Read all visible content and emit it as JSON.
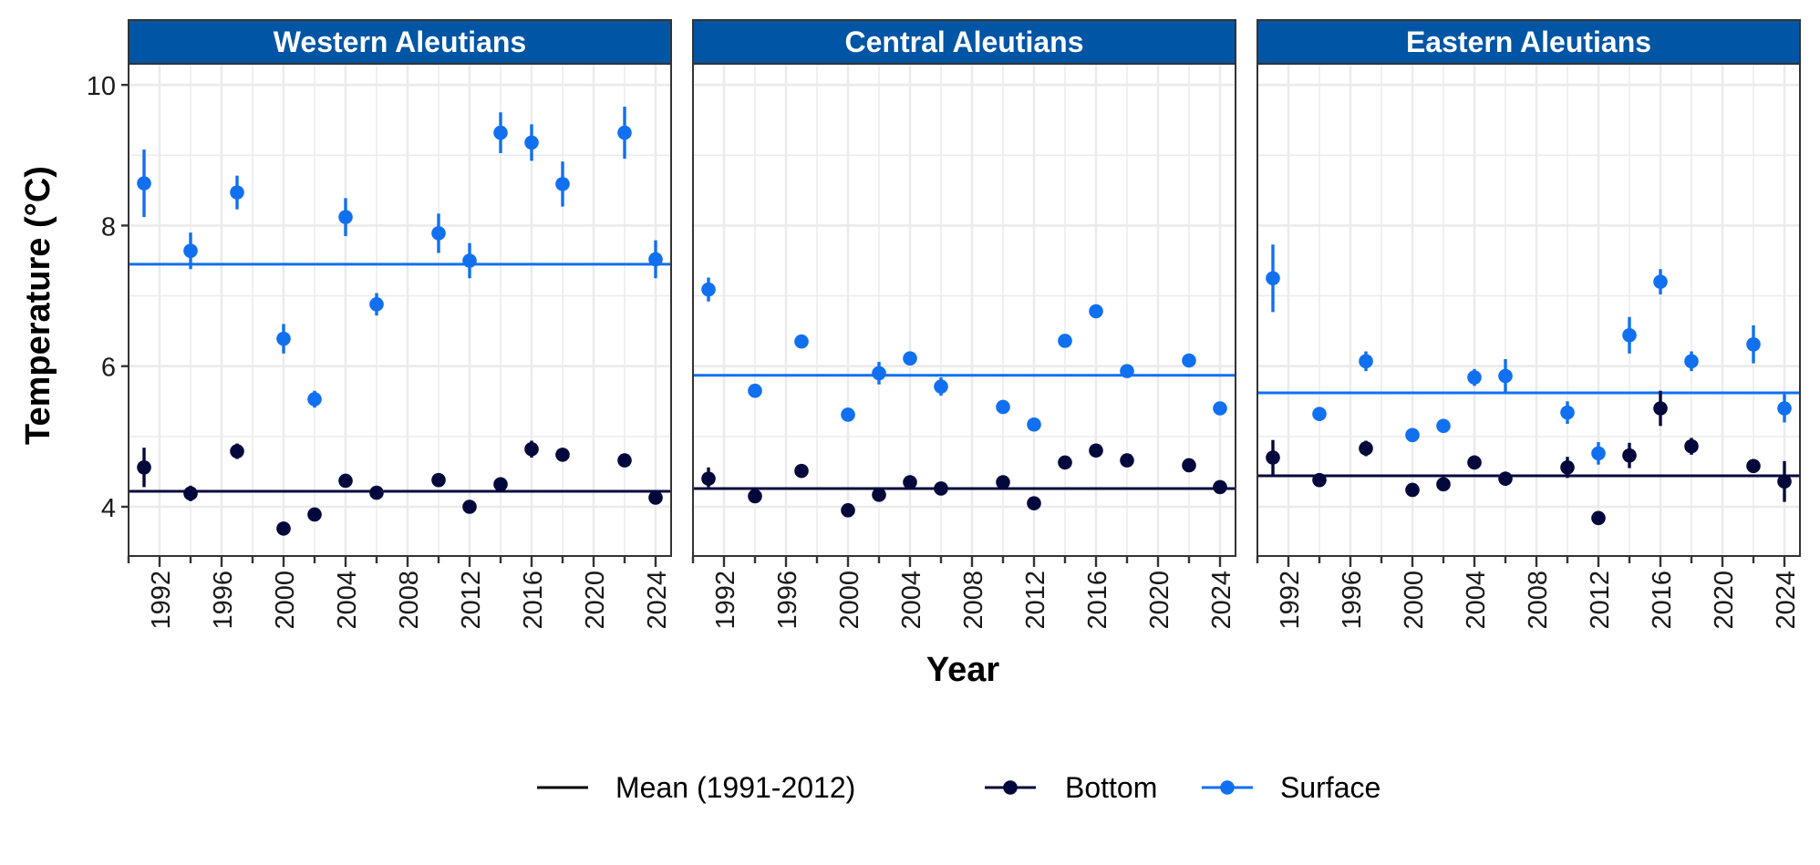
{
  "chart_data": {
    "type": "scatter",
    "facets": [
      "Western Aleutians",
      "Central Aleutians",
      "Eastern Aleutians"
    ],
    "xlabel": "Year",
    "ylabel": "Temperature (°C)",
    "ylim": [
      3.3,
      10.3
    ],
    "xlim": [
      1990,
      2025
    ],
    "y_ticks": [
      "4",
      "6",
      "8",
      "10"
    ],
    "x_tick_values": [
      1992,
      1996,
      2000,
      2004,
      2008,
      2012,
      2016,
      2020,
      2024
    ],
    "x_ticks": [
      "1992",
      "1996",
      "2000",
      "2004",
      "2008",
      "2012",
      "2016",
      "2020",
      "2024"
    ],
    "grid": true,
    "legend": {
      "position": "bottom",
      "items": [
        {
          "label": "Mean (1991-2012)",
          "kind": "line",
          "color": "#000000"
        },
        {
          "label": "Bottom",
          "kind": "point-line",
          "color": "#03083c"
        },
        {
          "label": "Surface",
          "kind": "point-line",
          "color": "#1170f0"
        }
      ]
    },
    "colors": {
      "bottom": "#03083c",
      "surface": "#1170f0",
      "strip": "#0055a5",
      "strip_text": "#ffffff"
    },
    "panels": [
      {
        "name": "Western Aleutians",
        "mean_bottom": 4.22,
        "mean_surface": 7.45,
        "bottom": [
          {
            "x": 1991,
            "y": 4.56,
            "lo": 4.28,
            "hi": 4.84
          },
          {
            "x": 1994,
            "y": 4.19,
            "lo": 4.08,
            "hi": 4.3
          },
          {
            "x": 1997,
            "y": 4.79,
            "lo": 4.68,
            "hi": 4.9
          },
          {
            "x": 2000,
            "y": 3.69,
            "lo": 3.64,
            "hi": 3.74
          },
          {
            "x": 2002,
            "y": 3.89,
            "lo": 3.84,
            "hi": 3.94
          },
          {
            "x": 2004,
            "y": 4.37,
            "lo": 4.32,
            "hi": 4.42
          },
          {
            "x": 2006,
            "y": 4.2,
            "lo": 4.15,
            "hi": 4.25
          },
          {
            "x": 2010,
            "y": 4.38,
            "lo": 4.33,
            "hi": 4.43
          },
          {
            "x": 2012,
            "y": 4.0,
            "lo": 3.95,
            "hi": 4.05
          },
          {
            "x": 2014,
            "y": 4.32,
            "lo": 4.22,
            "hi": 4.42
          },
          {
            "x": 2016,
            "y": 4.82,
            "lo": 4.7,
            "hi": 4.94
          },
          {
            "x": 2018,
            "y": 4.74,
            "lo": 4.69,
            "hi": 4.79
          },
          {
            "x": 2022,
            "y": 4.66,
            "lo": 4.61,
            "hi": 4.71
          },
          {
            "x": 2024,
            "y": 4.13,
            "lo": 4.08,
            "hi": 4.18
          }
        ],
        "surface": [
          {
            "x": 1991,
            "y": 8.6,
            "lo": 8.12,
            "hi": 9.08
          },
          {
            "x": 1994,
            "y": 7.64,
            "lo": 7.38,
            "hi": 7.9
          },
          {
            "x": 1997,
            "y": 8.47,
            "lo": 8.23,
            "hi": 8.71
          },
          {
            "x": 2000,
            "y": 6.39,
            "lo": 6.18,
            "hi": 6.6
          },
          {
            "x": 2002,
            "y": 5.53,
            "lo": 5.41,
            "hi": 5.65
          },
          {
            "x": 2004,
            "y": 8.12,
            "lo": 7.85,
            "hi": 8.39
          },
          {
            "x": 2006,
            "y": 6.88,
            "lo": 6.72,
            "hi": 7.04
          },
          {
            "x": 2010,
            "y": 7.89,
            "lo": 7.61,
            "hi": 8.17
          },
          {
            "x": 2012,
            "y": 7.5,
            "lo": 7.25,
            "hi": 7.75
          },
          {
            "x": 2014,
            "y": 9.32,
            "lo": 9.03,
            "hi": 9.61
          },
          {
            "x": 2016,
            "y": 9.18,
            "lo": 8.92,
            "hi": 9.44
          },
          {
            "x": 2018,
            "y": 8.59,
            "lo": 8.27,
            "hi": 8.91
          },
          {
            "x": 2022,
            "y": 9.32,
            "lo": 8.95,
            "hi": 9.69
          },
          {
            "x": 2024,
            "y": 7.52,
            "lo": 7.25,
            "hi": 7.79
          }
        ]
      },
      {
        "name": "Central Aleutians",
        "mean_bottom": 4.26,
        "mean_surface": 5.87,
        "bottom": [
          {
            "x": 1991,
            "y": 4.4,
            "lo": 4.28,
            "hi": 4.56
          },
          {
            "x": 1994,
            "y": 4.15,
            "lo": 4.1,
            "hi": 4.2
          },
          {
            "x": 1997,
            "y": 4.51,
            "lo": 4.46,
            "hi": 4.56
          },
          {
            "x": 2000,
            "y": 3.95,
            "lo": 3.9,
            "hi": 4.0
          },
          {
            "x": 2002,
            "y": 4.17,
            "lo": 4.12,
            "hi": 4.22
          },
          {
            "x": 2004,
            "y": 4.35,
            "lo": 4.3,
            "hi": 4.4
          },
          {
            "x": 2006,
            "y": 4.26,
            "lo": 4.21,
            "hi": 4.31
          },
          {
            "x": 2010,
            "y": 4.35,
            "lo": 4.3,
            "hi": 4.4
          },
          {
            "x": 2012,
            "y": 4.05,
            "lo": 4.0,
            "hi": 4.1
          },
          {
            "x": 2014,
            "y": 4.63,
            "lo": 4.58,
            "hi": 4.68
          },
          {
            "x": 2016,
            "y": 4.8,
            "lo": 4.75,
            "hi": 4.85
          },
          {
            "x": 2018,
            "y": 4.66,
            "lo": 4.61,
            "hi": 4.71
          },
          {
            "x": 2022,
            "y": 4.59,
            "lo": 4.54,
            "hi": 4.64
          },
          {
            "x": 2024,
            "y": 4.28,
            "lo": 4.23,
            "hi": 4.33
          }
        ],
        "surface": [
          {
            "x": 1991,
            "y": 7.09,
            "lo": 6.92,
            "hi": 7.26
          },
          {
            "x": 1994,
            "y": 5.65,
            "lo": 5.6,
            "hi": 5.7
          },
          {
            "x": 1997,
            "y": 6.35,
            "lo": 6.28,
            "hi": 6.42
          },
          {
            "x": 2000,
            "y": 5.31,
            "lo": 5.26,
            "hi": 5.36
          },
          {
            "x": 2002,
            "y": 5.9,
            "lo": 5.74,
            "hi": 6.06
          },
          {
            "x": 2004,
            "y": 6.11,
            "lo": 6.01,
            "hi": 6.21
          },
          {
            "x": 2006,
            "y": 5.71,
            "lo": 5.58,
            "hi": 5.84
          },
          {
            "x": 2010,
            "y": 5.42,
            "lo": 5.37,
            "hi": 5.47
          },
          {
            "x": 2012,
            "y": 5.17,
            "lo": 5.12,
            "hi": 5.22
          },
          {
            "x": 2014,
            "y": 6.36,
            "lo": 6.29,
            "hi": 6.43
          },
          {
            "x": 2016,
            "y": 6.78,
            "lo": 6.71,
            "hi": 6.85
          },
          {
            "x": 2018,
            "y": 5.93,
            "lo": 5.88,
            "hi": 5.98
          },
          {
            "x": 2022,
            "y": 6.08,
            "lo": 6.01,
            "hi": 6.15
          },
          {
            "x": 2024,
            "y": 5.4,
            "lo": 5.35,
            "hi": 5.45
          }
        ]
      },
      {
        "name": "Eastern Aleutians",
        "mean_bottom": 4.44,
        "mean_surface": 5.62,
        "bottom": [
          {
            "x": 1991,
            "y": 4.7,
            "lo": 4.45,
            "hi": 4.95
          },
          {
            "x": 1994,
            "y": 4.38,
            "lo": 4.33,
            "hi": 4.43
          },
          {
            "x": 1997,
            "y": 4.83,
            "lo": 4.72,
            "hi": 4.94
          },
          {
            "x": 2000,
            "y": 4.24,
            "lo": 4.17,
            "hi": 4.31
          },
          {
            "x": 2002,
            "y": 4.32,
            "lo": 4.25,
            "hi": 4.39
          },
          {
            "x": 2004,
            "y": 4.63,
            "lo": 4.53,
            "hi": 4.73
          },
          {
            "x": 2006,
            "y": 4.4,
            "lo": 4.3,
            "hi": 4.5
          },
          {
            "x": 2010,
            "y": 4.56,
            "lo": 4.41,
            "hi": 4.71
          },
          {
            "x": 2012,
            "y": 3.84,
            "lo": 3.79,
            "hi": 3.89
          },
          {
            "x": 2014,
            "y": 4.73,
            "lo": 4.55,
            "hi": 4.91
          },
          {
            "x": 2016,
            "y": 5.4,
            "lo": 5.15,
            "hi": 5.65
          },
          {
            "x": 2018,
            "y": 4.86,
            "lo": 4.74,
            "hi": 4.98
          },
          {
            "x": 2022,
            "y": 4.58,
            "lo": 4.48,
            "hi": 4.68
          },
          {
            "x": 2024,
            "y": 4.36,
            "lo": 4.07,
            "hi": 4.65
          }
        ],
        "surface": [
          {
            "x": 1991,
            "y": 7.25,
            "lo": 6.77,
            "hi": 7.73
          },
          {
            "x": 1994,
            "y": 5.32,
            "lo": 5.22,
            "hi": 5.42
          },
          {
            "x": 1997,
            "y": 6.07,
            "lo": 5.93,
            "hi": 6.21
          },
          {
            "x": 2000,
            "y": 5.02,
            "lo": 4.94,
            "hi": 5.1
          },
          {
            "x": 2002,
            "y": 5.15,
            "lo": 5.05,
            "hi": 5.25
          },
          {
            "x": 2004,
            "y": 5.84,
            "lo": 5.72,
            "hi": 5.96
          },
          {
            "x": 2006,
            "y": 5.86,
            "lo": 5.62,
            "hi": 6.1
          },
          {
            "x": 2010,
            "y": 5.34,
            "lo": 5.18,
            "hi": 5.5
          },
          {
            "x": 2012,
            "y": 4.76,
            "lo": 4.6,
            "hi": 4.92
          },
          {
            "x": 2014,
            "y": 6.44,
            "lo": 6.18,
            "hi": 6.7
          },
          {
            "x": 2016,
            "y": 7.2,
            "lo": 7.02,
            "hi": 7.38
          },
          {
            "x": 2018,
            "y": 6.07,
            "lo": 5.93,
            "hi": 6.21
          },
          {
            "x": 2022,
            "y": 6.31,
            "lo": 6.04,
            "hi": 6.58
          },
          {
            "x": 2024,
            "y": 5.4,
            "lo": 5.2,
            "hi": 5.6
          }
        ]
      }
    ]
  }
}
